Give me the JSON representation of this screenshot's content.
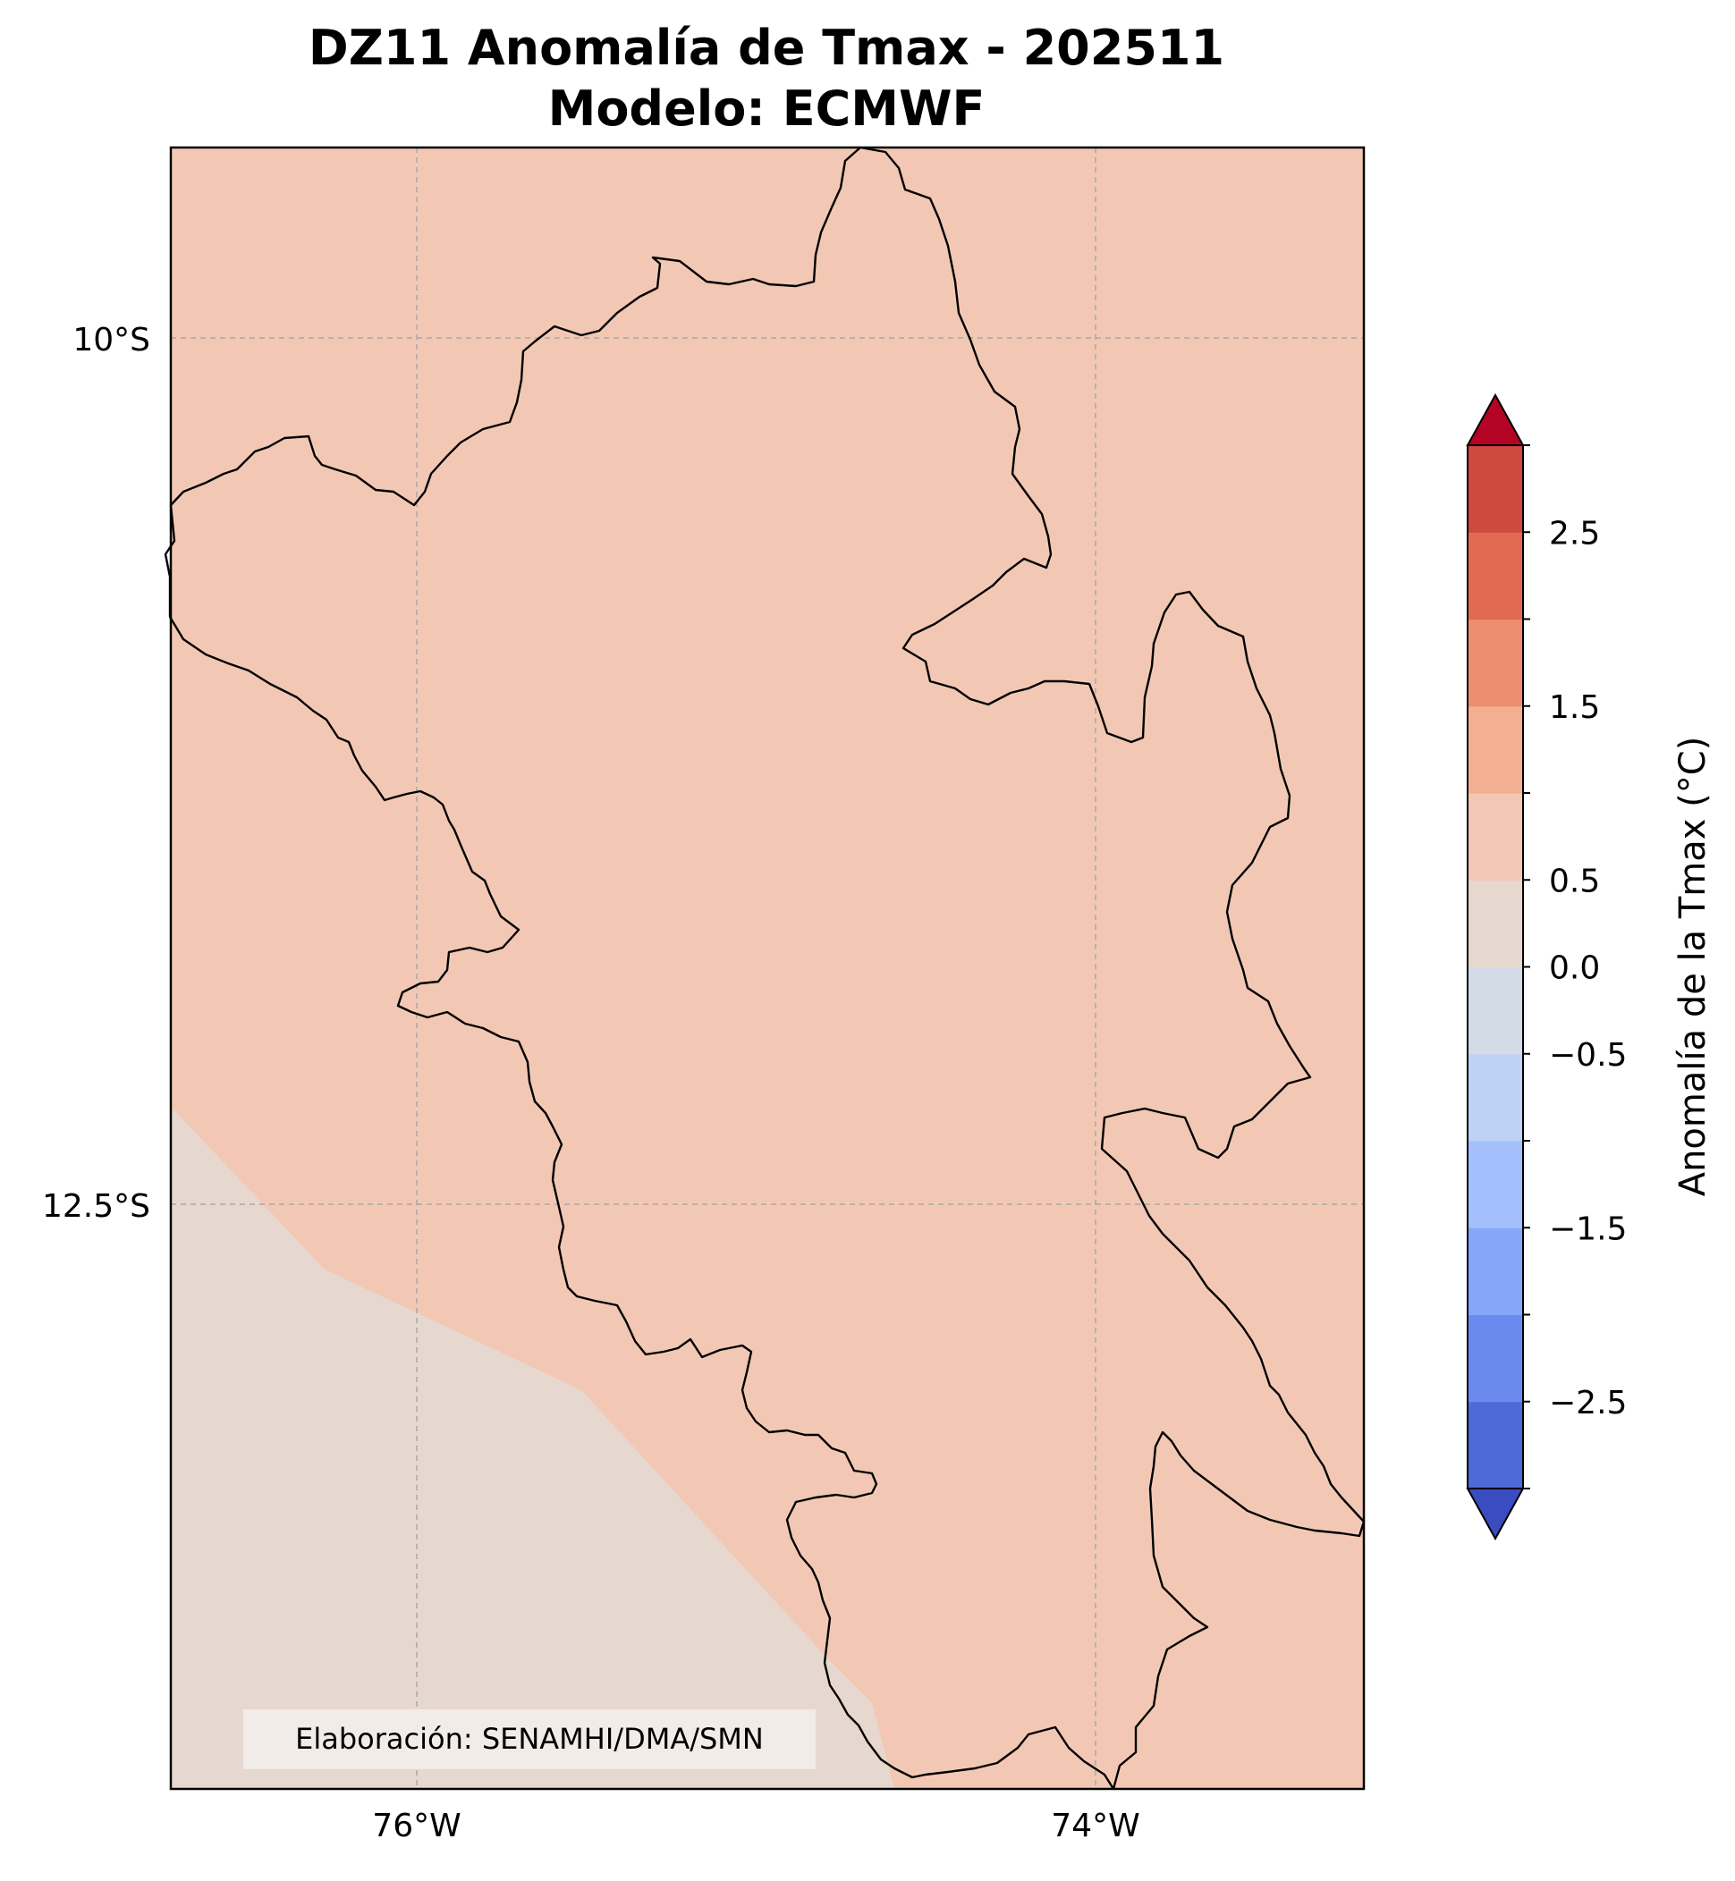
{
  "title": {
    "line1": "DZ11 Anomalía de Tmax - 202511",
    "line2": "Modelo: ECMWF"
  },
  "map": {
    "lat_ticks": [
      "10°S",
      "12.5°S"
    ],
    "lon_ticks": [
      "76°W",
      "74°W"
    ],
    "land_anomaly_color": "#f2c8b4",
    "sea_anomaly_color": "#e6d8cf",
    "gridlines": true
  },
  "colorbar": {
    "label": "Anomalía de la Tmax (°C)",
    "levels": [
      -3.0,
      -2.5,
      -2.0,
      -1.5,
      -1.0,
      -0.5,
      0.0,
      0.5,
      1.0,
      1.5,
      2.0,
      2.5,
      3.0
    ],
    "tick_labels": [
      "2.5",
      "1.5",
      "0.5",
      "0.0",
      "−0.5",
      "−1.5",
      "−2.5"
    ],
    "colors": [
      "#3b4cc0",
      "#4f6ad8",
      "#6b8af0",
      "#86a6fa",
      "#a3c0fd",
      "#bed2f6",
      "#d2dbe6",
      "#e6d8cf",
      "#f2c8b4",
      "#f4af93",
      "#ee8d6f",
      "#e16a50",
      "#ce4940",
      "#b40426"
    ],
    "extend": "both"
  },
  "credit": "Elaboración: SENAMHI/DMA/SMN"
}
